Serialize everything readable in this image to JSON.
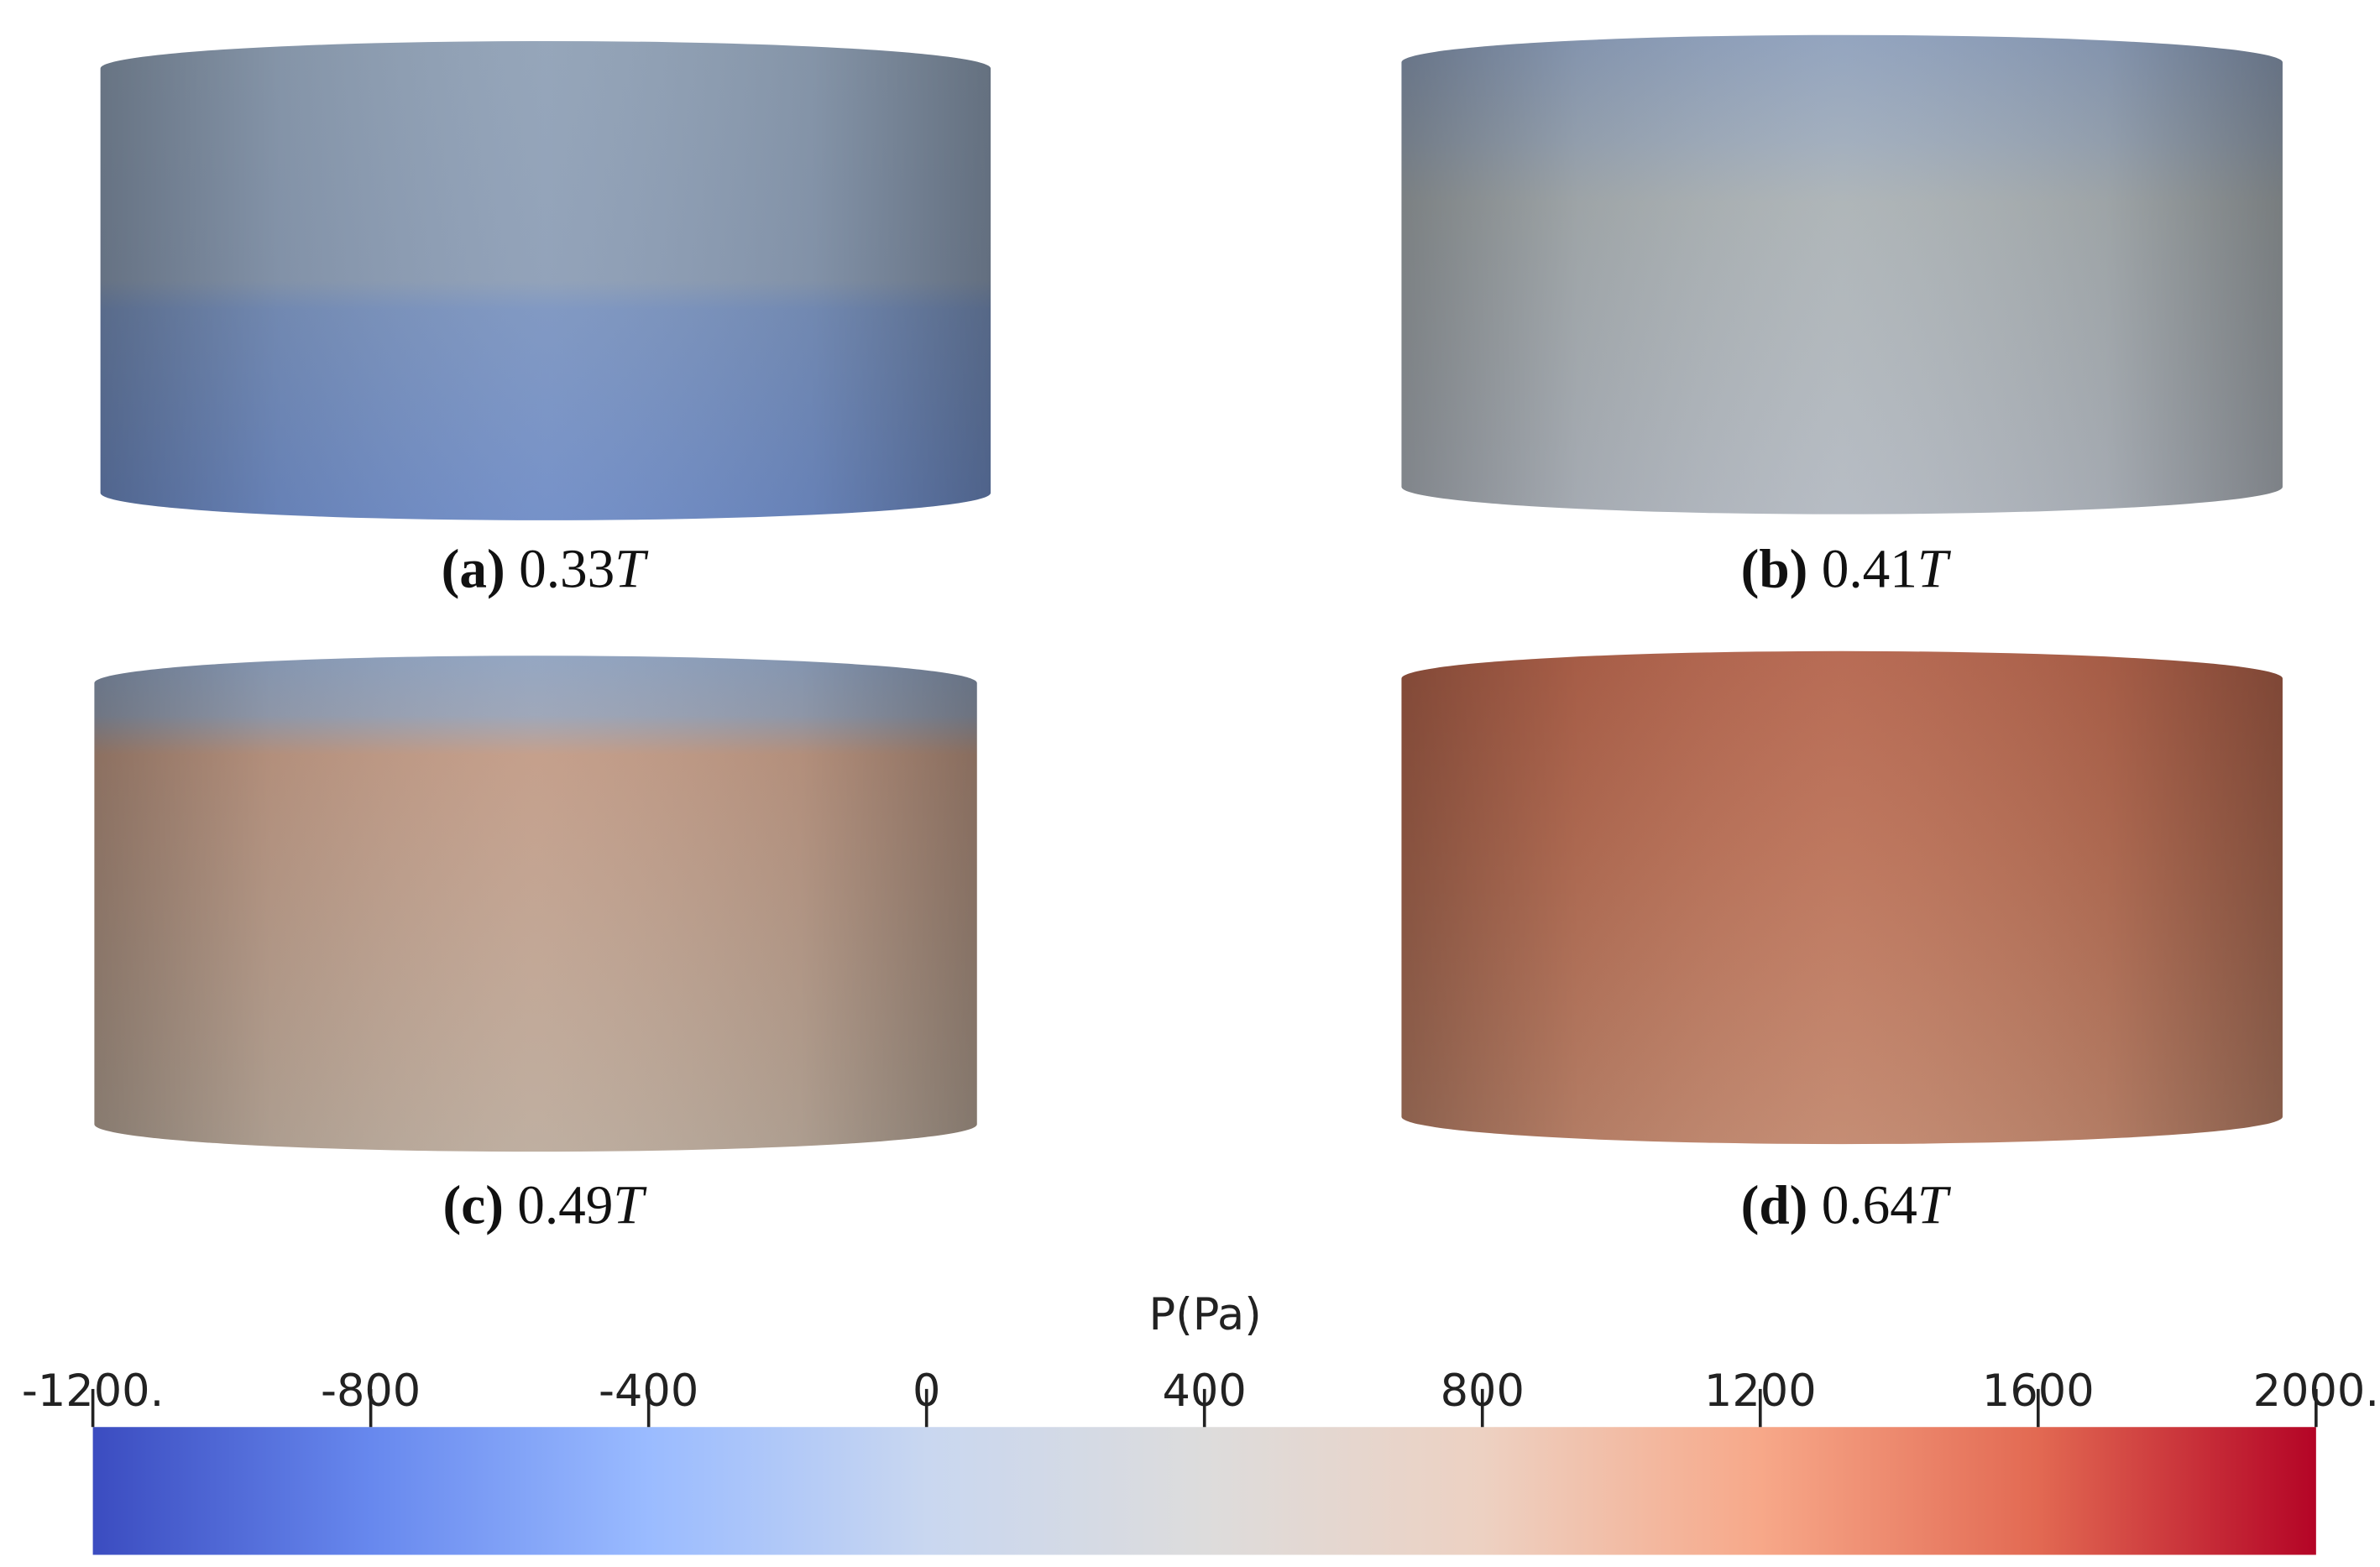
{
  "panels": [
    {
      "letter": "(a)",
      "time": "0.33",
      "unit": "T",
      "shade": [
        [
          0,
          "#90a1b6"
        ],
        [
          0.5,
          "#8d9eb6"
        ],
        [
          0.56,
          "#7b94c0"
        ],
        [
          1,
          "#6f8cc6"
        ]
      ]
    },
    {
      "letter": "(b)",
      "time": "0.41",
      "unit": "T",
      "shade": [
        [
          0,
          "#8ea0bc"
        ],
        [
          0.22,
          "#9eabbb"
        ],
        [
          0.35,
          "#abb2b5"
        ],
        [
          1,
          "#b3b9c1"
        ]
      ]
    },
    {
      "letter": "(c)",
      "time": "0.49",
      "unit": "T",
      "shade": [
        [
          0,
          "#8fa2bf"
        ],
        [
          0.12,
          "#9aa3b6"
        ],
        [
          0.2,
          "#c29b86"
        ],
        [
          1,
          "#bcab9c"
        ]
      ]
    },
    {
      "letter": "(d)",
      "time": "0.64",
      "unit": "T",
      "shade": [
        [
          0,
          "#b4644c"
        ],
        [
          0.4,
          "#bb7157"
        ],
        [
          1,
          "#c2876d"
        ]
      ]
    }
  ],
  "chart_data": {
    "type": "colorbar",
    "title": "P(Pa)",
    "xlim": [
      -1200,
      2000
    ],
    "xticks": [
      {
        "value": -1200,
        "label": "-1200."
      },
      -800,
      -400,
      0,
      400,
      800,
      1200,
      1600,
      {
        "value": 2000,
        "label": "2000."
      }
    ],
    "colormap": [
      "#3b4cc0",
      "#6788ee",
      "#9abbff",
      "#c9d7f0",
      "#dddcdc",
      "#edd1c2",
      "#f7a889",
      "#e26952",
      "#b40426"
    ]
  }
}
